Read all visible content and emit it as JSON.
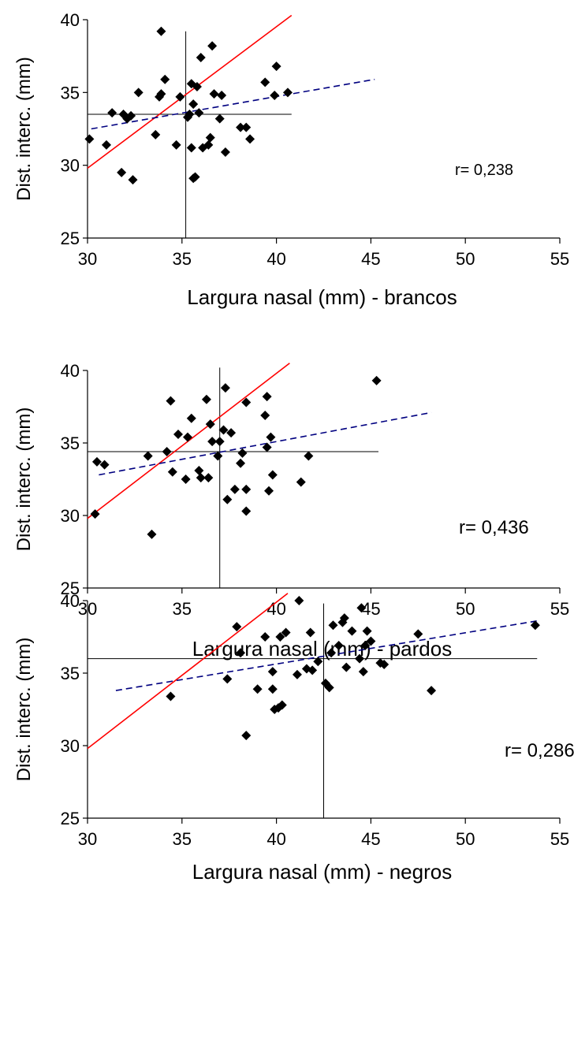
{
  "chart_data": [
    {
      "type": "scatter",
      "xlabel": "Largura nasal (mm) - brancos",
      "ylabel": "Dist. interc. (mm)",
      "xlim": [
        30,
        55
      ],
      "ylim": [
        25,
        40
      ],
      "x_ticks": [
        30,
        35,
        40,
        45,
        50,
        55
      ],
      "y_ticks": [
        25,
        30,
        35,
        40
      ],
      "annotation": "r= 0,238",
      "mean_x": 35.2,
      "mean_y": 33.5,
      "mean_line_x_extent": [
        30,
        40.8
      ],
      "mean_line_y_extent": [
        25,
        39.2
      ],
      "identity_line": [
        [
          30,
          29.8
        ],
        [
          40.8,
          40.3
        ]
      ],
      "trend_line": [
        [
          30.2,
          32.5
        ],
        [
          45.2,
          35.9
        ]
      ],
      "colors": {
        "points": "#000000",
        "identity": "#ff0000",
        "trend": "#000080"
      },
      "points": [
        [
          30.1,
          31.8
        ],
        [
          31.0,
          31.4
        ],
        [
          31.3,
          33.6
        ],
        [
          31.8,
          29.5
        ],
        [
          31.9,
          33.5
        ],
        [
          32.1,
          33.2
        ],
        [
          32.3,
          33.4
        ],
        [
          32.4,
          29.0
        ],
        [
          32.7,
          35.0
        ],
        [
          33.6,
          32.1
        ],
        [
          33.8,
          34.7
        ],
        [
          33.9,
          34.9
        ],
        [
          33.9,
          39.2
        ],
        [
          34.1,
          35.9
        ],
        [
          34.7,
          31.4
        ],
        [
          34.9,
          34.7
        ],
        [
          35.3,
          33.3
        ],
        [
          35.4,
          33.5
        ],
        [
          35.5,
          35.6
        ],
        [
          35.5,
          31.2
        ],
        [
          35.6,
          34.2
        ],
        [
          35.6,
          29.1
        ],
        [
          35.7,
          29.2
        ],
        [
          35.8,
          35.4
        ],
        [
          35.9,
          33.6
        ],
        [
          36.0,
          37.4
        ],
        [
          36.1,
          31.2
        ],
        [
          36.4,
          31.4
        ],
        [
          36.5,
          31.9
        ],
        [
          36.6,
          38.2
        ],
        [
          36.7,
          34.9
        ],
        [
          37.0,
          33.2
        ],
        [
          37.1,
          34.8
        ],
        [
          37.3,
          30.9
        ],
        [
          38.1,
          32.6
        ],
        [
          38.4,
          32.6
        ],
        [
          38.6,
          31.8
        ],
        [
          39.4,
          35.7
        ],
        [
          39.9,
          34.8
        ],
        [
          40.0,
          36.8
        ],
        [
          40.6,
          35.0
        ]
      ]
    },
    {
      "type": "scatter",
      "xlabel": "Largura nasal (mm) - pardos",
      "ylabel": "Dist. interc. (mm)",
      "xlim": [
        30,
        55
      ],
      "ylim": [
        25,
        40
      ],
      "x_ticks": [
        30,
        35,
        40,
        45,
        50,
        55
      ],
      "y_ticks": [
        25,
        30,
        35,
        40
      ],
      "annotation": "r= 0,436",
      "mean_x": 37.0,
      "mean_y": 34.4,
      "mean_line_x_extent": [
        30,
        45.4
      ],
      "mean_line_y_extent": [
        25,
        40.2
      ],
      "identity_line": [
        [
          30,
          29.8
        ],
        [
          40.7,
          40.5
        ]
      ],
      "trend_line": [
        [
          30.6,
          32.8
        ],
        [
          48.2,
          37.1
        ]
      ],
      "colors": {
        "points": "#000000",
        "identity": "#ff0000",
        "trend": "#000080"
      },
      "points": [
        [
          30.4,
          30.1
        ],
        [
          30.5,
          33.7
        ],
        [
          30.9,
          33.5
        ],
        [
          33.2,
          34.1
        ],
        [
          33.4,
          28.7
        ],
        [
          34.2,
          34.4
        ],
        [
          34.4,
          37.9
        ],
        [
          34.5,
          33.0
        ],
        [
          34.8,
          35.6
        ],
        [
          35.2,
          32.5
        ],
        [
          35.3,
          35.4
        ],
        [
          35.5,
          36.7
        ],
        [
          35.9,
          33.1
        ],
        [
          36.0,
          32.6
        ],
        [
          36.3,
          38.0
        ],
        [
          36.4,
          32.6
        ],
        [
          36.5,
          36.3
        ],
        [
          36.6,
          35.1
        ],
        [
          36.9,
          34.1
        ],
        [
          37.0,
          35.1
        ],
        [
          37.2,
          35.9
        ],
        [
          37.3,
          38.8
        ],
        [
          37.4,
          31.1
        ],
        [
          37.6,
          35.7
        ],
        [
          37.8,
          31.8
        ],
        [
          38.1,
          33.6
        ],
        [
          38.2,
          34.3
        ],
        [
          38.4,
          31.8
        ],
        [
          38.4,
          30.3
        ],
        [
          38.4,
          37.8
        ],
        [
          39.4,
          36.9
        ],
        [
          39.5,
          34.7
        ],
        [
          39.5,
          38.2
        ],
        [
          39.6,
          31.7
        ],
        [
          39.7,
          35.4
        ],
        [
          39.8,
          32.8
        ],
        [
          41.3,
          32.3
        ],
        [
          41.7,
          34.1
        ],
        [
          45.3,
          39.3
        ]
      ]
    },
    {
      "type": "scatter",
      "xlabel": "Largura nasal (mm) - negros",
      "ylabel": "Dist. interc. (mm)",
      "xlim": [
        30,
        55
      ],
      "ylim": [
        25,
        40
      ],
      "x_ticks": [
        30,
        35,
        40,
        45,
        50,
        55
      ],
      "y_ticks": [
        25,
        30,
        35,
        40
      ],
      "annotation": "r= 0,286",
      "mean_x": 42.5,
      "mean_y": 36.0,
      "mean_line_x_extent": [
        30,
        53.8
      ],
      "mean_line_y_extent": [
        25,
        39.8
      ],
      "identity_line": [
        [
          30,
          29.8
        ],
        [
          40.6,
          40.5
        ]
      ],
      "trend_line": [
        [
          31.5,
          33.8
        ],
        [
          53.8,
          38.6
        ]
      ],
      "colors": {
        "points": "#000000",
        "identity": "#ff0000",
        "trend": "#000080"
      },
      "points": [
        [
          34.4,
          33.4
        ],
        [
          37.4,
          34.6
        ],
        [
          37.9,
          38.2
        ],
        [
          38.1,
          36.4
        ],
        [
          38.4,
          30.7
        ],
        [
          39.0,
          33.9
        ],
        [
          39.4,
          37.5
        ],
        [
          39.8,
          35.1
        ],
        [
          39.8,
          33.9
        ],
        [
          39.9,
          32.5
        ],
        [
          40.1,
          32.6
        ],
        [
          40.2,
          37.5
        ],
        [
          40.3,
          32.8
        ],
        [
          40.5,
          37.8
        ],
        [
          41.1,
          34.9
        ],
        [
          41.2,
          40.0
        ],
        [
          41.6,
          35.3
        ],
        [
          41.8,
          37.8
        ],
        [
          41.9,
          35.2
        ],
        [
          42.2,
          35.8
        ],
        [
          42.6,
          34.3
        ],
        [
          42.8,
          34.0
        ],
        [
          42.9,
          36.4
        ],
        [
          43.0,
          38.3
        ],
        [
          43.3,
          36.9
        ],
        [
          43.5,
          38.5
        ],
        [
          43.6,
          38.8
        ],
        [
          43.7,
          35.4
        ],
        [
          44.0,
          37.9
        ],
        [
          44.4,
          36.0
        ],
        [
          44.5,
          39.5
        ],
        [
          44.6,
          35.1
        ],
        [
          44.7,
          36.9
        ],
        [
          44.8,
          37.9
        ],
        [
          45.0,
          37.2
        ],
        [
          45.5,
          35.7
        ],
        [
          45.7,
          35.6
        ],
        [
          47.5,
          37.7
        ],
        [
          48.2,
          33.8
        ],
        [
          53.7,
          38.3
        ]
      ]
    }
  ]
}
